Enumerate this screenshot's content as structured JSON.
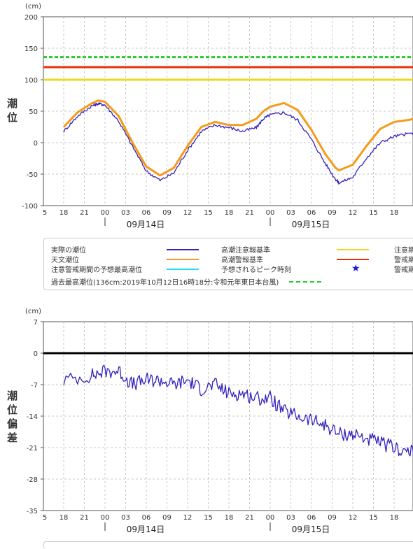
{
  "chart_data": [
    {
      "type": "line",
      "unit": "(cm)",
      "ylabel": "潮位",
      "ylim": [
        -100,
        200
      ],
      "yticks": [
        "200",
        "150",
        "100",
        "50",
        "0",
        "-50",
        "-100"
      ],
      "xticks": [
        "5",
        "18",
        "21",
        "00",
        "03",
        "06",
        "09",
        "12",
        "15",
        "18",
        "21",
        "00",
        "03",
        "06",
        "09",
        "12",
        "15",
        "18"
      ],
      "dates": [
        "09月14日",
        "09月15日"
      ],
      "reference_lines": [
        {
          "name": "過去最高潮位",
          "value": 136,
          "color": "#22cc22",
          "style": "dashed"
        },
        {
          "name": "高潮警報基準",
          "value": 120,
          "color": "#e83010"
        },
        {
          "name": "高潮注意報基準",
          "value": 100,
          "color": "#ecd820"
        }
      ],
      "series": [
        {
          "name": "天文潮位",
          "color": "#f59a1a",
          "x": [
            0,
            2,
            4,
            5,
            6,
            8,
            10,
            12,
            14,
            16,
            18,
            20,
            22,
            24,
            26,
            28,
            29,
            30,
            32,
            34,
            36,
            38,
            39.5,
            40,
            42,
            44,
            46,
            48,
            50,
            52,
            54,
            56,
            58
          ],
          "values": [
            25,
            48,
            62,
            67,
            65,
            42,
            0,
            -38,
            -52,
            -40,
            -5,
            25,
            33,
            28,
            28,
            38,
            50,
            57,
            63,
            52,
            20,
            -18,
            -40,
            -44,
            -35,
            -5,
            22,
            33,
            36,
            40,
            45,
            50,
            51
          ]
        },
        {
          "name": "実際の潮位",
          "color": "#3322bb",
          "x": [
            0,
            2,
            4,
            5,
            6,
            8,
            10,
            12,
            14,
            16,
            18,
            20,
            22,
            24,
            26,
            28,
            29,
            30,
            32,
            34,
            36,
            38,
            39.5,
            40,
            42,
            44,
            46,
            48,
            50,
            52,
            53
          ],
          "values": [
            18,
            42,
            58,
            62,
            60,
            34,
            -6,
            -45,
            -60,
            -48,
            -12,
            18,
            28,
            24,
            18,
            24,
            38,
            44,
            48,
            36,
            5,
            -33,
            -58,
            -64,
            -55,
            -24,
            0,
            10,
            14,
            18,
            22
          ]
        }
      ]
    },
    {
      "type": "line",
      "unit": "(cm)",
      "ylabel": "潮位偏差",
      "ylim": [
        -35,
        7
      ],
      "yticks": [
        "7",
        "0",
        "-7",
        "-14",
        "-21",
        "-28",
        "-35"
      ],
      "xticks": [
        "5",
        "18",
        "21",
        "00",
        "03",
        "06",
        "09",
        "12",
        "15",
        "18",
        "21",
        "00",
        "03",
        "06",
        "09",
        "12",
        "15",
        "18"
      ],
      "dates": [
        "09月14日",
        "09月15日"
      ],
      "reference_lines": [
        {
          "value": 0,
          "color": "#000000"
        }
      ],
      "series": [
        {
          "name": "潮位偏差",
          "color": "#3322bb",
          "x": [
            0,
            4,
            6,
            8,
            10,
            12,
            14,
            16,
            18,
            20,
            22,
            24,
            26,
            28,
            30,
            32,
            34,
            36,
            38,
            40,
            42,
            44,
            46,
            48,
            50,
            52,
            53
          ],
          "values": [
            -6,
            -5,
            -4,
            -4,
            -7,
            -6,
            -6,
            -7,
            -6,
            -8,
            -7,
            -9,
            -9,
            -10,
            -10,
            -13,
            -14,
            -15,
            -16,
            -18,
            -18,
            -19,
            -20,
            -21,
            -22,
            -22,
            -22
          ]
        }
      ]
    }
  ],
  "legend": {
    "items": [
      {
        "label": "実際の潮位",
        "color": "#3322bb",
        "kind": "line"
      },
      {
        "label": "高潮注意報基準",
        "color": "#ecd820",
        "kind": "line"
      },
      {
        "label": "注意期",
        "color": "",
        "kind": "text"
      },
      {
        "label": "天文潮位",
        "color": "#f59a1a",
        "kind": "line"
      },
      {
        "label": "高潮警報基準",
        "color": "#e83010",
        "kind": "line"
      },
      {
        "label": "警戒期",
        "color": "",
        "kind": "text"
      },
      {
        "label": "注意警戒期間の予想最高潮位",
        "color": "#22e0f0",
        "kind": "line"
      },
      {
        "label": "予想されるピーク時刻",
        "color": "#1a1ad6",
        "kind": "star"
      },
      {
        "label": "警戒期",
        "color": "",
        "kind": "text"
      },
      {
        "label": "過去最高潮位(136cm:2019年10月12日16時18分:令和元年東日本台風)",
        "color": "#22cc22",
        "kind": "dashed"
      }
    ]
  }
}
